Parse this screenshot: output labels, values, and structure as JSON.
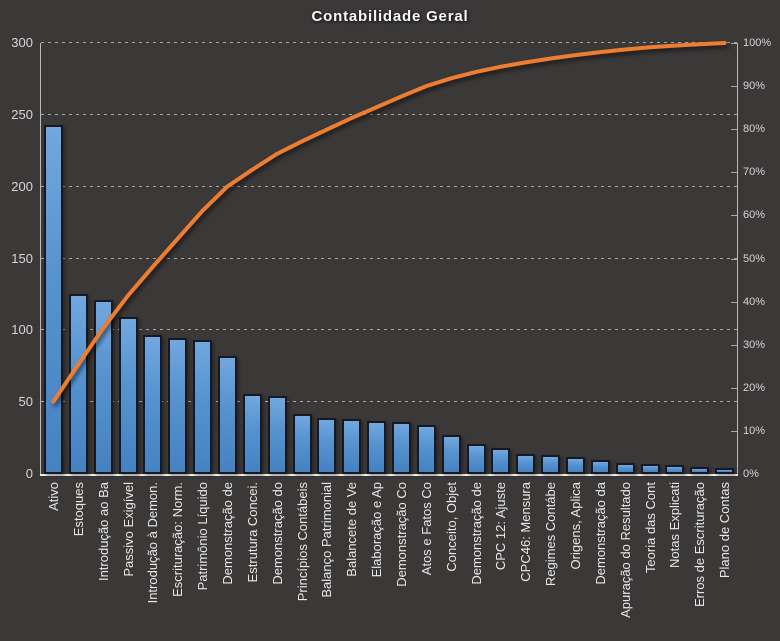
{
  "title": "Contabilidade Geral",
  "colors": {
    "background": "#3B3838",
    "bar_fill_top": "#72A7DF",
    "bar_fill_bottom": "#4682C2",
    "bar_border": "#181820",
    "line": "#ED7D31",
    "grid": "#FFFFFF",
    "axis_text": "#D6D6D6",
    "x_label_text": "#E8E8E8"
  },
  "chart_data": {
    "type": "bar",
    "variant": "pareto-with-cumulative-line",
    "title": "Contabilidade Geral",
    "legend": "none",
    "grid": "horizontal dashed at left-axis steps of 50",
    "x_label_rotation_deg": 90,
    "categories": [
      "Ativo",
      "Estoques",
      "Introdução ao Ba",
      "Passivo Exigível",
      "Introdução à Demon.",
      "Escrituração: Norm.",
      "Patrimônio Líquido",
      "Demonstração de",
      "Estrutura Concei.",
      "Demonstração do",
      "Princípios Contábeis",
      "Balanço Patrimonial",
      "Balancete de Ve",
      "Elaboração e Ap",
      "Demonstração Co",
      "Atos e Fatos Co",
      "Conceito, Objet",
      "Demonstração de",
      "CPC 12: Ajuste",
      "CPC46: Mensura",
      "Regimes Contábe",
      "Origens, Aplica",
      "Demonstração da",
      "Apuração do Resultado",
      "Teoria das Cont",
      "Notas Explicati",
      "Erros de Escrituração",
      "Plano de Contas"
    ],
    "bar_values": [
      243,
      125,
      121,
      109,
      97,
      95,
      93,
      82,
      56,
      54,
      42,
      39,
      38,
      37,
      36,
      34,
      27,
      21,
      18,
      14,
      13,
      12,
      10,
      8,
      7,
      6,
      5,
      4
    ],
    "cumulative_pct": [
      16.8,
      25.4,
      33.8,
      41.4,
      48.1,
      54.6,
      61.1,
      66.7,
      70.6,
      74.3,
      77.2,
      79.9,
      82.6,
      85.1,
      87.6,
      90.0,
      91.8,
      93.3,
      94.5,
      95.5,
      96.4,
      97.2,
      97.9,
      98.5,
      99.0,
      99.4,
      99.7,
      100.0
    ],
    "left_axis": {
      "min": 0,
      "max": 300,
      "step": 50,
      "ticks": [
        0,
        50,
        100,
        150,
        200,
        250,
        300
      ]
    },
    "right_axis": {
      "min_label": "0%",
      "max_label": "100%",
      "ticks": [
        "0%",
        "10%",
        "20%",
        "30%",
        "40%",
        "50%",
        "60%",
        "70%",
        "80%",
        "90%",
        "100%"
      ]
    }
  }
}
